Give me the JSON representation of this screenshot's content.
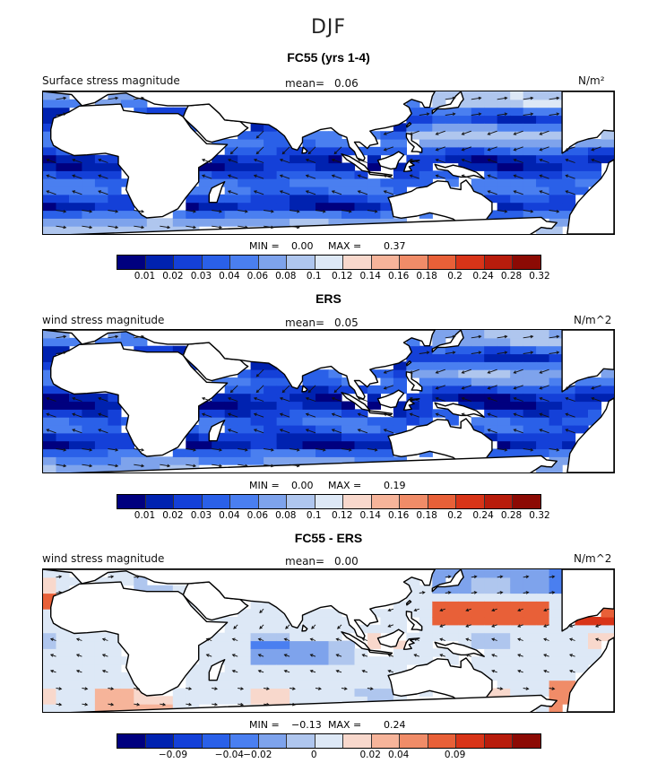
{
  "figure": {
    "season": "DJF"
  },
  "panels": [
    {
      "title": "FC55 (yrs 1-4)",
      "field": "Surface stress magnitude",
      "mean_label": "mean=",
      "mean": "0.06",
      "units": "N/m²",
      "min_label": "MIN =",
      "min": "0.00",
      "max_label": "MAX =",
      "max": "0.37",
      "colorbar": "magnitude"
    },
    {
      "title": "ERS",
      "field": "wind stress magnitude",
      "mean_label": "mean=",
      "mean": "0.05",
      "units": "N/m^2",
      "min_label": "MIN =",
      "min": "0.00",
      "max_label": "MAX =",
      "max": "0.19",
      "colorbar": "magnitude"
    },
    {
      "title": "FC55 - ERS",
      "field": "wind stress magnitude",
      "mean_label": "mean=",
      "mean": "0.00",
      "units": "N/m^2",
      "min_label": "MIN =",
      "min": "−0.13",
      "max_label": "MAX =",
      "max": "0.24",
      "colorbar": "difference"
    }
  ],
  "colorbars": {
    "magnitude": {
      "colors": [
        "#00007f",
        "#0022b0",
        "#1440d8",
        "#2a60e8",
        "#4a7ff0",
        "#7ea3ec",
        "#afc6ee",
        "#dde8f6",
        "#f8d8cc",
        "#f6b49a",
        "#f08c68",
        "#e86038",
        "#d83418",
        "#b81c0c",
        "#8c0a04"
      ],
      "tick_labels": [
        "0.01",
        "0.02",
        "0.03",
        "0.04",
        "0.06",
        "0.08",
        "0.1",
        "0.12",
        "0.14",
        "0.16",
        "0.18",
        "0.2",
        "0.24",
        "0.28",
        "0.32"
      ]
    },
    "difference": {
      "colors": [
        "#00007f",
        "#0022b0",
        "#1440d8",
        "#2a60e8",
        "#4a7ff0",
        "#7ea3ec",
        "#afc6ee",
        "#dde8f6",
        "#f8d8cc",
        "#f6b49a",
        "#f08c68",
        "#e86038",
        "#d83418",
        "#b81c0c",
        "#8c0a04"
      ],
      "tick_labels": [
        "−0.09",
        "−0.04",
        "−0.02",
        "0",
        "0.02",
        "0.04",
        "0.09"
      ]
    }
  },
  "map": {
    "extent": {
      "lon": [
        -20,
        200
      ],
      "lat": [
        -45,
        45
      ]
    },
    "land_color": "#ffffff",
    "coast_color": "#000000"
  }
}
